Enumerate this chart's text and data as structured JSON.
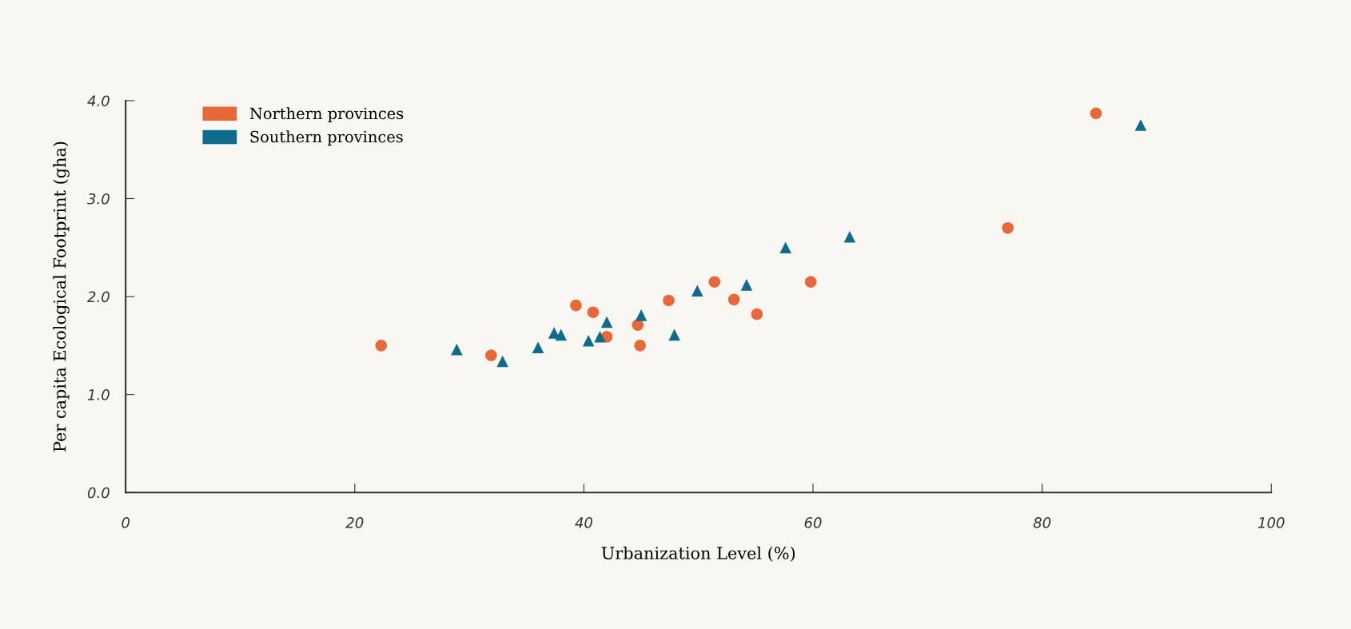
{
  "chart_data": {
    "type": "scatter",
    "xlabel": "Urbanization Level (%)",
    "ylabel": "Per capita Ecological Footprint (gha)",
    "series": [
      {
        "name": "Northern provinces",
        "color": "#e8683a",
        "marker": "circle",
        "x": [
          22.3,
          31.9,
          39.3,
          40.8,
          42.0,
          44.7,
          44.9,
          47.4,
          51.4,
          53.1,
          55.1,
          59.8,
          77.0,
          84.7
        ],
        "values": [
          1.5,
          1.4,
          1.91,
          1.84,
          1.59,
          1.71,
          1.5,
          1.96,
          2.15,
          1.97,
          1.82,
          2.15,
          2.7,
          3.87
        ]
      },
      {
        "name": "Southern provinces",
        "color": "#0e6b8c",
        "marker": "triangle",
        "x": [
          28.9,
          32.9,
          36.0,
          37.4,
          38.0,
          40.4,
          41.4,
          42.0,
          45.0,
          47.9,
          49.9,
          54.2,
          57.6,
          63.2,
          88.6
        ],
        "values": [
          1.46,
          1.34,
          1.48,
          1.63,
          1.61,
          1.55,
          1.59,
          1.74,
          1.81,
          1.61,
          2.06,
          2.12,
          2.5,
          2.61,
          3.75
        ]
      }
    ],
    "xlim": [
      0,
      100
    ],
    "xticks": [
      0,
      20,
      40,
      60,
      80,
      100
    ],
    "ylim": [
      0,
      4.0
    ],
    "yticks": [
      {
        "value": 0,
        "label": "0.0"
      },
      {
        "value": 1,
        "label": "1.0"
      },
      {
        "value": 2,
        "label": "2.0"
      },
      {
        "value": 3,
        "label": "3.0"
      },
      {
        "value": 4,
        "label": "4.0"
      }
    ],
    "grid": false,
    "legend": "top left"
  }
}
